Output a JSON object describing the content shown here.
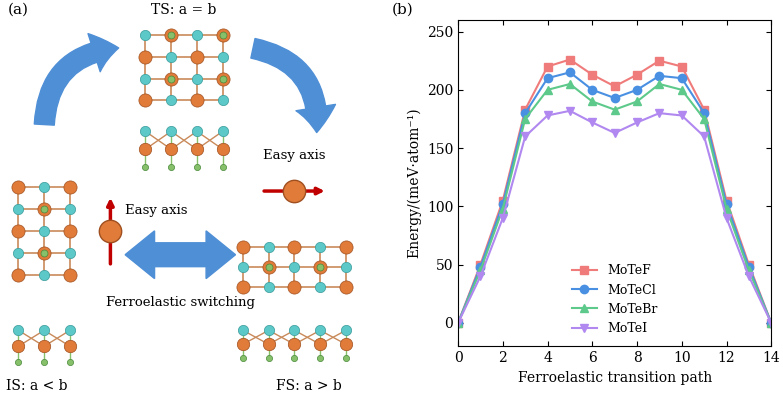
{
  "panel_a": {
    "label": "(a)",
    "ts": "TS: a = b",
    "is": "IS: a < b",
    "fs": "FS: a > b",
    "easy_axis": "Easy axis",
    "switching": "Ferroelastic switching"
  },
  "chart_data": {
    "type": "line",
    "panel_label": "(b)",
    "x_label": "Ferroelastic transition path",
    "y_label": "Energy/(meV·atom⁻¹)",
    "x": [
      0,
      1,
      2,
      3,
      4,
      5,
      6,
      7,
      8,
      9,
      10,
      11,
      12,
      13,
      14
    ],
    "xlim": [
      0,
      14
    ],
    "xticks": [
      0,
      2,
      4,
      6,
      8,
      10,
      12,
      14
    ],
    "ylim": [
      -20,
      260
    ],
    "yticks": [
      0,
      50,
      100,
      150,
      200,
      250
    ],
    "legend": "lower center",
    "series": [
      {
        "name": "MoTeF",
        "color": "#f07b7b",
        "marker": "square",
        "values": [
          0,
          50,
          105,
          183,
          220,
          226,
          213,
          203,
          213,
          225,
          220,
          183,
          105,
          50,
          0
        ]
      },
      {
        "name": "MoTeCl",
        "color": "#4a90e2",
        "marker": "circle",
        "values": [
          0,
          48,
          102,
          180,
          210,
          215,
          200,
          193,
          200,
          212,
          210,
          180,
          102,
          48,
          0
        ]
      },
      {
        "name": "MoTeBr",
        "color": "#5dc98a",
        "marker": "triangle_up",
        "values": [
          0,
          45,
          98,
          175,
          200,
          205,
          190,
          183,
          190,
          205,
          200,
          175,
          98,
          45,
          0
        ]
      },
      {
        "name": "MoTeI",
        "color": "#b088f0",
        "marker": "triangle_down",
        "values": [
          0,
          40,
          90,
          160,
          178,
          182,
          172,
          163,
          172,
          180,
          178,
          160,
          90,
          40,
          0
        ]
      }
    ]
  }
}
